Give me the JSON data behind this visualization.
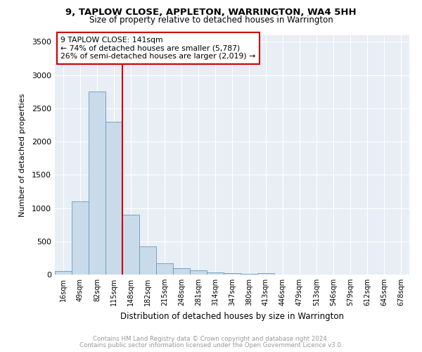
{
  "title1": "9, TAPLOW CLOSE, APPLETON, WARRINGTON, WA4 5HH",
  "title2": "Size of property relative to detached houses in Warrington",
  "xlabel": "Distribution of detached houses by size in Warrington",
  "ylabel": "Number of detached properties",
  "bin_labels": [
    "16sqm",
    "49sqm",
    "82sqm",
    "115sqm",
    "148sqm",
    "182sqm",
    "215sqm",
    "248sqm",
    "281sqm",
    "314sqm",
    "347sqm",
    "380sqm",
    "413sqm",
    "446sqm",
    "479sqm",
    "513sqm",
    "546sqm",
    "579sqm",
    "612sqm",
    "645sqm",
    "678sqm"
  ],
  "bar_values": [
    50,
    1100,
    2750,
    2300,
    900,
    420,
    165,
    100,
    60,
    35,
    25,
    10,
    25,
    0,
    0,
    0,
    0,
    0,
    0,
    0,
    0
  ],
  "bar_color": "#c9daea",
  "bar_edge_color": "#6699bb",
  "property_line_color": "#cc0000",
  "annotation_text": "9 TAPLOW CLOSE: 141sqm\n← 74% of detached houses are smaller (5,787)\n26% of semi-detached houses are larger (2,019) →",
  "annotation_box_color": "#cc0000",
  "ylim": [
    0,
    3600
  ],
  "yticks": [
    0,
    500,
    1000,
    1500,
    2000,
    2500,
    3000,
    3500
  ],
  "background_color": "#e8eef5",
  "grid_color": "#ffffff",
  "footer_text1": "Contains HM Land Registry data © Crown copyright and database right 2024.",
  "footer_text2": "Contains public sector information licensed under the Open Government Licence v3.0."
}
